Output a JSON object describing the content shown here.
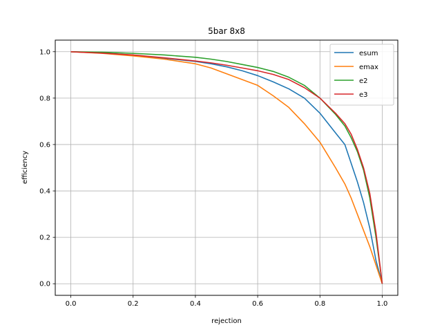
{
  "chart_data": {
    "type": "line",
    "title": "5bar 8x8",
    "xlabel": "rejection",
    "ylabel": "efficiency",
    "xlim": [
      -0.05,
      1.05
    ],
    "ylim": [
      -0.05,
      1.05
    ],
    "xticks": [
      "0.0",
      "0.2",
      "0.4",
      "0.6",
      "0.8",
      "1.0"
    ],
    "yticks": [
      "0.0",
      "0.2",
      "0.4",
      "0.6",
      "0.8",
      "1.0"
    ],
    "grid": true,
    "legend_position": "top-right",
    "series": [
      {
        "name": "esum",
        "color": "#1f77b4",
        "x": [
          0.0,
          0.1,
          0.2,
          0.3,
          0.4,
          0.45,
          0.5,
          0.55,
          0.6,
          0.65,
          0.7,
          0.75,
          0.8,
          0.85,
          0.88,
          0.9,
          0.92,
          0.94,
          0.96,
          0.98,
          1.0
        ],
        "y": [
          1.0,
          0.995,
          0.985,
          0.972,
          0.958,
          0.948,
          0.935,
          0.918,
          0.897,
          0.87,
          0.84,
          0.8,
          0.735,
          0.65,
          0.6,
          0.52,
          0.44,
          0.35,
          0.24,
          0.1,
          0.0
        ]
      },
      {
        "name": "emax",
        "color": "#ff7f0e",
        "x": [
          0.0,
          0.1,
          0.2,
          0.3,
          0.4,
          0.45,
          0.5,
          0.55,
          0.6,
          0.65,
          0.7,
          0.75,
          0.8,
          0.85,
          0.88,
          0.9,
          0.92,
          0.94,
          0.96,
          0.98,
          1.0
        ],
        "y": [
          1.0,
          0.993,
          0.982,
          0.968,
          0.948,
          0.93,
          0.905,
          0.88,
          0.855,
          0.81,
          0.76,
          0.69,
          0.61,
          0.5,
          0.43,
          0.37,
          0.3,
          0.23,
          0.16,
          0.08,
          0.0
        ]
      },
      {
        "name": "e2",
        "color": "#2ca02c",
        "x": [
          0.0,
          0.1,
          0.2,
          0.3,
          0.4,
          0.45,
          0.5,
          0.55,
          0.6,
          0.65,
          0.7,
          0.75,
          0.8,
          0.85,
          0.88,
          0.9,
          0.92,
          0.94,
          0.96,
          0.98,
          1.0
        ],
        "y": [
          1.0,
          0.998,
          0.993,
          0.986,
          0.976,
          0.968,
          0.958,
          0.945,
          0.932,
          0.915,
          0.89,
          0.855,
          0.8,
          0.73,
          0.68,
          0.63,
          0.57,
          0.49,
          0.37,
          0.2,
          0.0
        ]
      },
      {
        "name": "e3",
        "color": "#d62728",
        "x": [
          0.0,
          0.1,
          0.2,
          0.3,
          0.4,
          0.45,
          0.5,
          0.55,
          0.6,
          0.65,
          0.7,
          0.75,
          0.8,
          0.85,
          0.88,
          0.9,
          0.92,
          0.94,
          0.96,
          0.98,
          1.0
        ],
        "y": [
          1.0,
          0.994,
          0.986,
          0.974,
          0.96,
          0.952,
          0.942,
          0.93,
          0.918,
          0.902,
          0.88,
          0.845,
          0.8,
          0.735,
          0.69,
          0.645,
          0.58,
          0.5,
          0.39,
          0.22,
          0.0
        ]
      }
    ]
  }
}
